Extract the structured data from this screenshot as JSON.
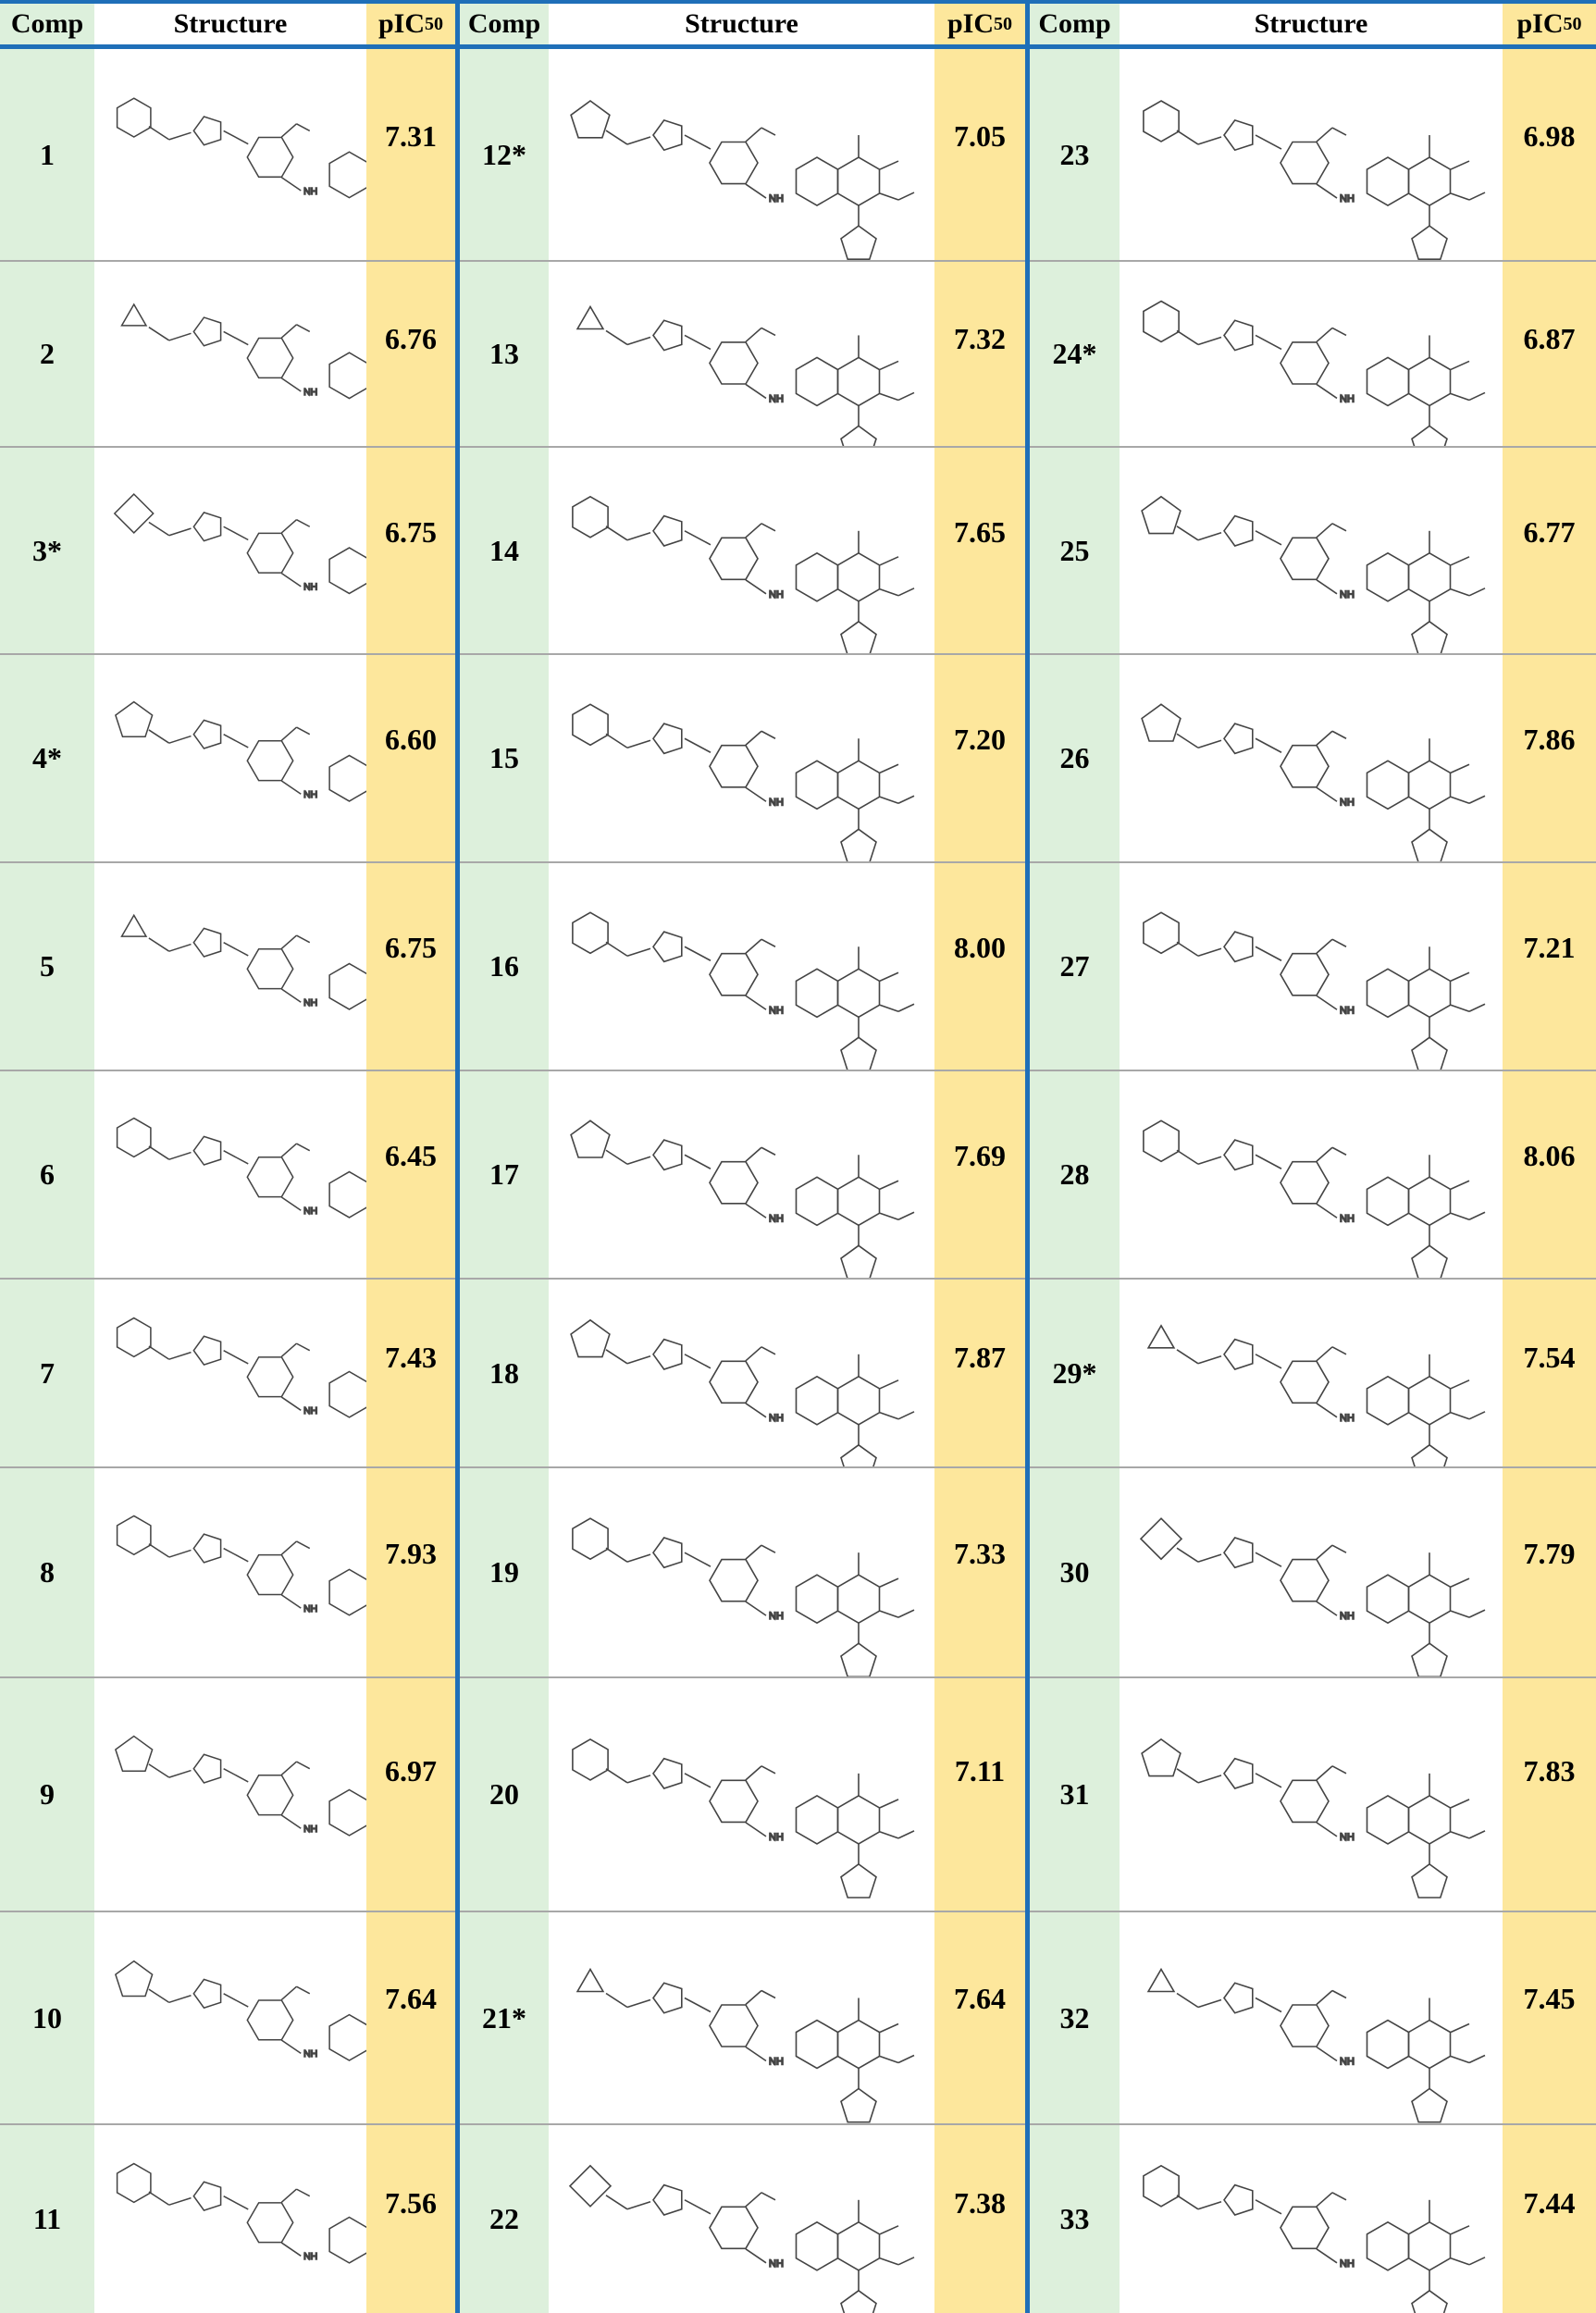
{
  "header": {
    "comp": "Comp",
    "structure": "Structure",
    "pic_prefix": "pIC",
    "pic_sub": "50"
  },
  "sections": [
    {
      "rows": [
        {
          "comp": "1",
          "pic50": "7.31"
        },
        {
          "comp": "2",
          "pic50": "6.76"
        },
        {
          "comp": "3*",
          "pic50": "6.75"
        },
        {
          "comp": "4*",
          "pic50": "6.60"
        },
        {
          "comp": "5",
          "pic50": "6.75"
        },
        {
          "comp": "6",
          "pic50": "6.45"
        },
        {
          "comp": "7",
          "pic50": "7.43"
        },
        {
          "comp": "8",
          "pic50": "7.93"
        },
        {
          "comp": "9",
          "pic50": "6.97"
        },
        {
          "comp": "10",
          "pic50": "7.64"
        },
        {
          "comp": "11",
          "pic50": "7.56"
        }
      ]
    },
    {
      "rows": [
        {
          "comp": "12*",
          "pic50": "7.05"
        },
        {
          "comp": "13",
          "pic50": "7.32"
        },
        {
          "comp": "14",
          "pic50": "7.65"
        },
        {
          "comp": "15",
          "pic50": "7.20"
        },
        {
          "comp": "16",
          "pic50": "8.00"
        },
        {
          "comp": "17",
          "pic50": "7.69"
        },
        {
          "comp": "18",
          "pic50": "7.87"
        },
        {
          "comp": "19",
          "pic50": "7.33"
        },
        {
          "comp": "20",
          "pic50": "7.11"
        },
        {
          "comp": "21*",
          "pic50": "7.64"
        },
        {
          "comp": "22",
          "pic50": "7.38"
        }
      ]
    },
    {
      "rows": [
        {
          "comp": "23",
          "pic50": "6.98"
        },
        {
          "comp": "24*",
          "pic50": "6.87"
        },
        {
          "comp": "25",
          "pic50": "6.77"
        },
        {
          "comp": "26",
          "pic50": "7.86"
        },
        {
          "comp": "27",
          "pic50": "7.21"
        },
        {
          "comp": "28",
          "pic50": "8.06"
        },
        {
          "comp": "29*",
          "pic50": "7.54"
        },
        {
          "comp": "30",
          "pic50": "7.79"
        },
        {
          "comp": "31",
          "pic50": "7.83"
        },
        {
          "comp": "32",
          "pic50": "7.45"
        },
        {
          "comp": "33",
          "pic50": "7.44"
        }
      ]
    }
  ]
}
